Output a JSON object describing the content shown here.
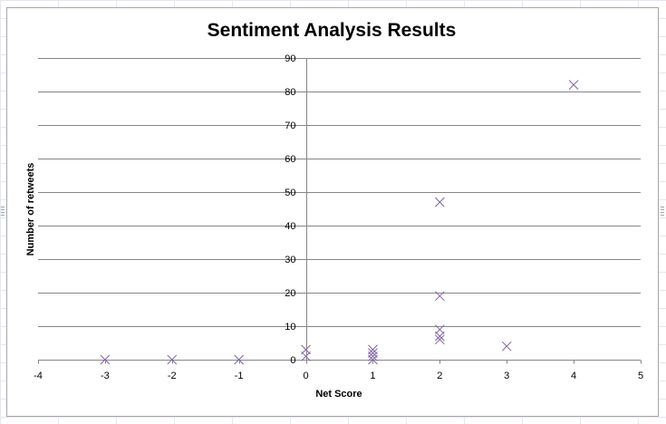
{
  "chart_data": {
    "type": "scatter",
    "title": "Sentiment Analysis Results",
    "xlabel": "Net Score",
    "ylabel": "Number of retweets",
    "xlim": [
      -4,
      5
    ],
    "ylim": [
      0,
      90
    ],
    "xticks": [
      -4,
      -3,
      -2,
      -1,
      0,
      1,
      2,
      3,
      4,
      5
    ],
    "yticks": [
      0,
      10,
      20,
      30,
      40,
      50,
      60,
      70,
      80,
      90
    ],
    "grid": true,
    "legend": "none",
    "marker": "x",
    "series": [
      {
        "points": [
          [
            -3,
            0
          ],
          [
            -2,
            0
          ],
          [
            -1,
            0
          ],
          [
            0,
            1
          ],
          [
            0,
            3
          ],
          [
            1,
            0
          ],
          [
            1,
            1
          ],
          [
            1,
            2
          ],
          [
            1,
            3
          ],
          [
            2,
            6
          ],
          [
            2,
            7
          ],
          [
            2,
            9
          ],
          [
            2,
            19
          ],
          [
            2,
            47
          ],
          [
            3,
            4
          ],
          [
            4,
            82
          ]
        ]
      }
    ]
  },
  "colors": {
    "marker": "#8064a2",
    "grid": "#868686",
    "axis": "#868686",
    "text": "#000000",
    "frame": "#a6a6a6"
  }
}
